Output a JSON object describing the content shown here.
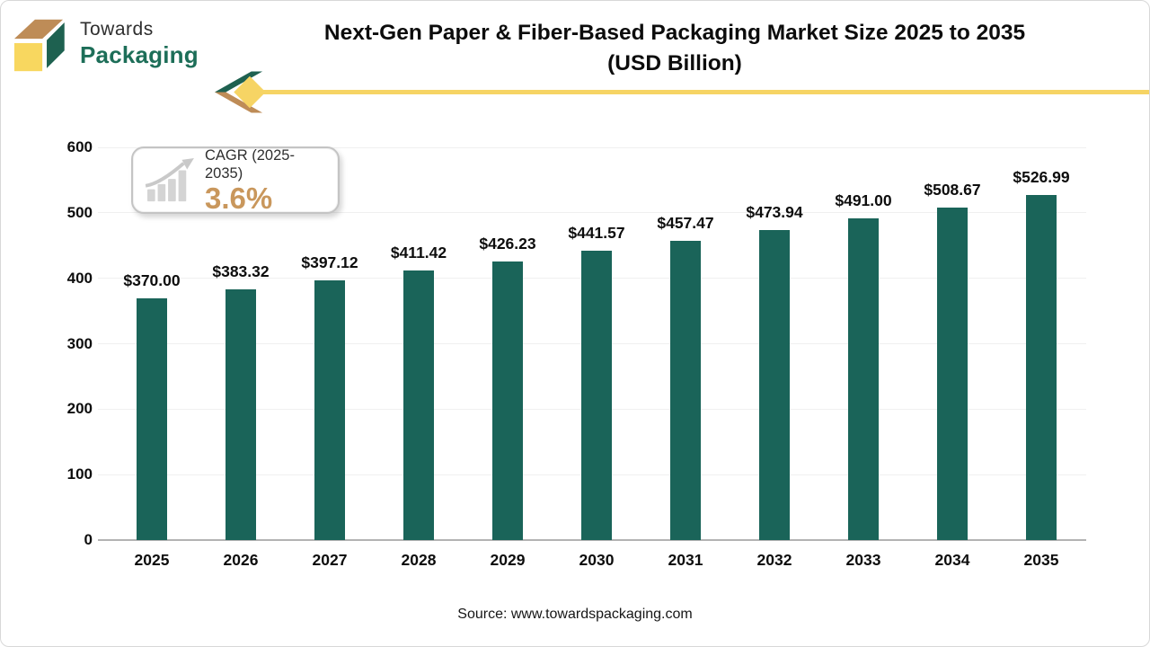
{
  "brand": {
    "line1": "Towards",
    "line2": "Packaging"
  },
  "header": {
    "title_line1": "Next-Gen Paper & Fiber-Based Packaging Market Size 2025 to 2035",
    "title_line2": "(USD Billion)"
  },
  "badge": {
    "label": "CAGR (2025-2035)",
    "value": "3.6%"
  },
  "footer": {
    "source": "Source: www.towardspackaging.com"
  },
  "colors": {
    "bar": "#1A6459",
    "brand_green": "#1D6E58",
    "cube_tan": "#BE8C57",
    "cube_yellow": "#F8D75F",
    "divider_yellow": "#F6D464",
    "cagr_value": "#C9975C",
    "gridline": "#f0f0f0",
    "axis_line": "#b3b3b3",
    "text": "#0d0d0d"
  },
  "chart_data": {
    "type": "bar",
    "title": "Next-Gen Paper & Fiber-Based Packaging Market Size 2025 to 2035 (USD Billion)",
    "xlabel": "",
    "ylabel": "",
    "categories": [
      "2025",
      "2026",
      "2027",
      "2028",
      "2029",
      "2030",
      "2031",
      "2032",
      "2033",
      "2034",
      "2035"
    ],
    "values": [
      370.0,
      383.32,
      397.12,
      411.42,
      426.23,
      441.57,
      457.47,
      473.94,
      491.0,
      508.67,
      526.99
    ],
    "labels": [
      "$370.00",
      "$383.32",
      "$397.12",
      "$411.42",
      "$426.23",
      "$441.57",
      "$457.47",
      "$473.94",
      "$491.00",
      "$508.67",
      "$526.99"
    ],
    "ylim": [
      0,
      600
    ],
    "ytick_step": 100,
    "grid": true,
    "legend": "none",
    "bar_color": "#1A6459"
  }
}
